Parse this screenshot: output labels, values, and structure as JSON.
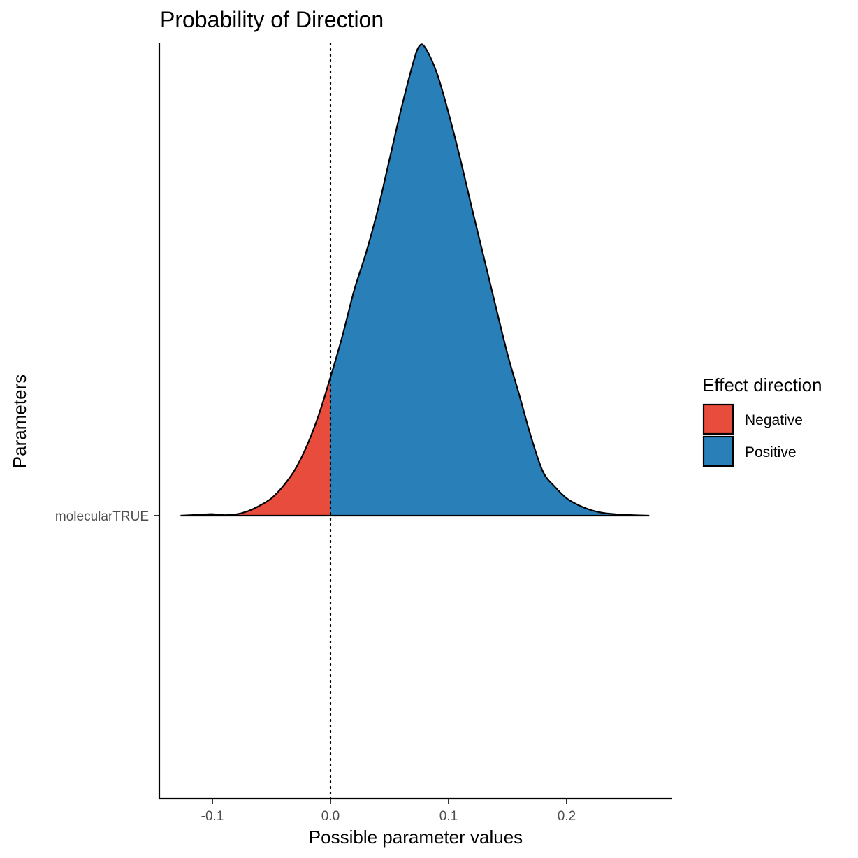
{
  "chart_data": {
    "type": "area",
    "title": "Probability of Direction",
    "xlabel": "Possible parameter values",
    "ylabel": "Parameters",
    "xlim": [
      -0.15,
      0.29
    ],
    "x_ticks": [
      {
        "value": -0.1,
        "label": "-0.1"
      },
      {
        "value": 0.0,
        "label": "0.0"
      },
      {
        "value": 0.1,
        "label": "0.1"
      },
      {
        "value": 0.2,
        "label": "0.2"
      }
    ],
    "parameter": "molecularTRUE",
    "reference_line": 0,
    "grid": false,
    "legend": {
      "title": "Effect direction",
      "placement": "right",
      "entries": [
        {
          "name": "Negative",
          "color": "#E74C3C"
        },
        {
          "name": "Positive",
          "color": "#2980B9"
        }
      ]
    },
    "density": {
      "x": [
        -0.127,
        -0.11,
        -0.1,
        -0.09,
        -0.08,
        -0.07,
        -0.06,
        -0.05,
        -0.04,
        -0.03,
        -0.02,
        -0.01,
        0.0,
        0.01,
        0.02,
        0.03,
        0.04,
        0.05,
        0.06,
        0.07,
        0.075,
        0.08,
        0.09,
        0.1,
        0.11,
        0.12,
        0.13,
        0.14,
        0.15,
        0.16,
        0.17,
        0.18,
        0.19,
        0.2,
        0.21,
        0.22,
        0.23,
        0.24,
        0.25,
        0.27
      ],
      "y": [
        0.0,
        0.004,
        0.006,
        0.002,
        0.005,
        0.017,
        0.038,
        0.066,
        0.113,
        0.176,
        0.266,
        0.383,
        0.528,
        0.683,
        0.858,
        1.0,
        1.164,
        1.358,
        1.552,
        1.725,
        1.788,
        1.785,
        1.688,
        1.534,
        1.358,
        1.167,
        0.982,
        0.796,
        0.614,
        0.458,
        0.298,
        0.167,
        0.11,
        0.066,
        0.04,
        0.022,
        0.011,
        0.006,
        0.003,
        0.0
      ],
      "ylim": [
        0,
        1.8
      ]
    }
  }
}
